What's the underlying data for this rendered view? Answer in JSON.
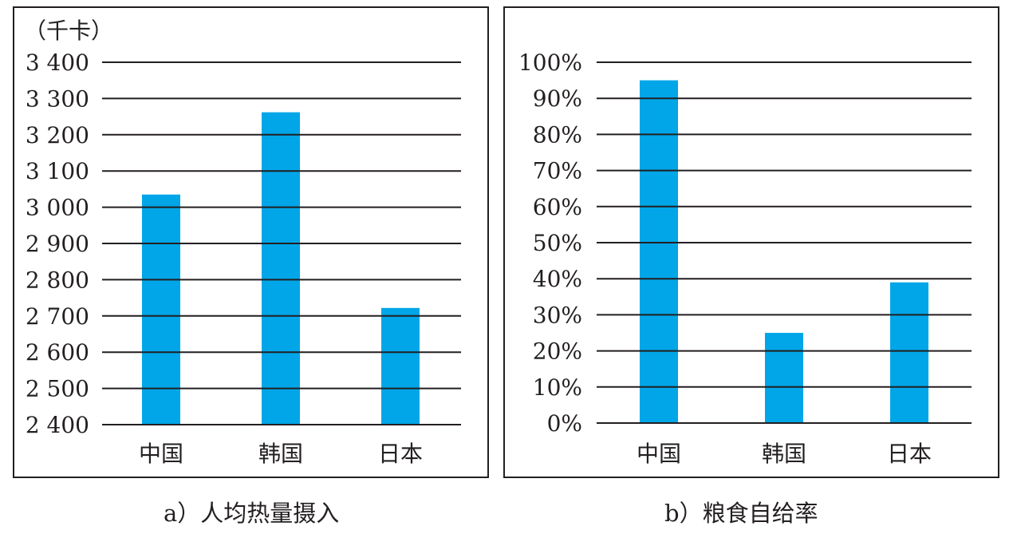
{
  "chart_data": [
    {
      "type": "bar",
      "unit_label": "（千卡）",
      "categories": [
        "中国",
        "韩国",
        "日本"
      ],
      "values": [
        3035,
        3262,
        2722
      ],
      "ylim": [
        2400,
        3400
      ],
      "yticks": [
        2400,
        2500,
        2600,
        2700,
        2800,
        2900,
        3000,
        3100,
        3200,
        3300,
        3400
      ],
      "ytick_labels": [
        "2 400",
        "2 500",
        "2 600",
        "2 700",
        "2 800",
        "2 900",
        "3 000",
        "3 100",
        "3 200",
        "3 300",
        "3 400"
      ],
      "grid": true,
      "bar_color": "#00a6e8",
      "caption": "a）人均热量摄入"
    },
    {
      "type": "bar",
      "categories": [
        "中国",
        "韩国",
        "日本"
      ],
      "values": [
        95,
        25,
        39
      ],
      "ylim": [
        0,
        100
      ],
      "yticks": [
        0,
        10,
        20,
        30,
        40,
        50,
        60,
        70,
        80,
        90,
        100
      ],
      "ytick_labels": [
        "0%",
        "10%",
        "20%",
        "30%",
        "40%",
        "50%",
        "60%",
        "70%",
        "80%",
        "90%",
        "100%"
      ],
      "grid": true,
      "bar_color": "#00a6e8",
      "caption": "b）粮食自给率"
    }
  ]
}
